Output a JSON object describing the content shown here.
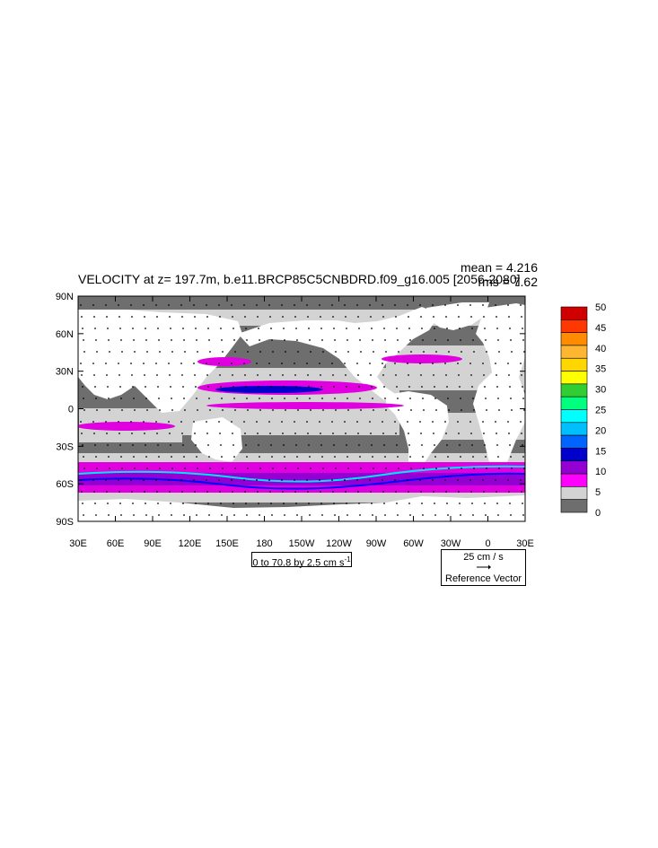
{
  "plot": {
    "title": "VELOCITY at z= 197.7m, b.e11.BRCP85C5CNBDRD.f09_g16.005 [2056-2080]",
    "mean_text": "mean = 4.216",
    "rms_text": "rms = 7.62"
  },
  "axes": {
    "lat_labels": [
      "90N",
      "60N",
      "30N",
      "0",
      "30S",
      "60S",
      "90S"
    ],
    "lon_labels": [
      "30E",
      "60E",
      "90E",
      "120E",
      "150E",
      "180",
      "150W",
      "120W",
      "90W",
      "60W",
      "30W",
      "0",
      "30E"
    ]
  },
  "contour_info": {
    "text": "0 to 70.8 by 2.5 cm s",
    "sup": "-1"
  },
  "reference_vector": {
    "magnitude": "25 cm / s",
    "label": "Reference Vector"
  },
  "colorbar": {
    "labels": [
      "50",
      "45",
      "40",
      "35",
      "30",
      "25",
      "20",
      "15",
      "10",
      "5",
      "0"
    ],
    "colors": [
      "#d10000",
      "#ff3700",
      "#ff8c00",
      "#ffb732",
      "#ffd700",
      "#ffff00",
      "#32cd32",
      "#00ff7f",
      "#00ffff",
      "#00bfff",
      "#0064ff",
      "#0000cd",
      "#9400d3",
      "#ff00ff",
      "#d3d3d3",
      "#6e6e6e"
    ]
  },
  "colors": {
    "land": "#ffffff",
    "ocean_low": "#6e6e6e",
    "ocean_mid": "#d3d3d3",
    "magenta": "#e000e0",
    "purple": "#9400d3",
    "blue": "#0000ff",
    "cyan": "#00e5ff"
  }
}
